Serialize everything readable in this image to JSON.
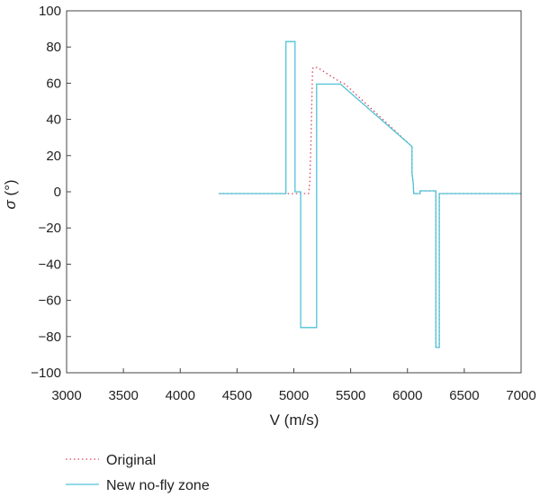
{
  "chart_data": {
    "type": "line",
    "xlabel": "V (m/s)",
    "ylabel_symbol": "σ",
    "ylabel_unit": " (°)",
    "xlim": [
      3000,
      7000
    ],
    "ylim": [
      -100,
      100
    ],
    "xticks": [
      3000,
      3500,
      4000,
      4500,
      5000,
      5500,
      6000,
      6500,
      7000
    ],
    "yticks": [
      -100,
      -80,
      -60,
      -40,
      -20,
      0,
      20,
      40,
      60,
      80,
      100
    ],
    "grid": false,
    "legend_position": "bottom-left",
    "series": [
      {
        "name": "Original",
        "color": "#d9435a",
        "style": "dotted",
        "x": [
          4340,
          4930,
          5100,
          5130,
          5140,
          5150,
          5160,
          5165,
          5180,
          5210,
          5250,
          5300,
          5350,
          5400,
          5450,
          6040,
          6040,
          6050,
          6055,
          6060,
          6110,
          6110,
          6120,
          6200,
          6240,
          6250,
          6250,
          6280,
          6280,
          6300,
          7000
        ],
        "y": [
          -1,
          -1,
          -1,
          -1,
          5,
          25,
          55,
          68,
          69,
          68.5,
          67,
          65,
          63,
          61,
          59.5,
          25,
          10,
          5,
          -1,
          -1,
          -1,
          0.5,
          0.5,
          0.5,
          0.5,
          0.5,
          -86,
          -86,
          -1,
          -1,
          -1
        ]
      },
      {
        "name": "New no-fly zone",
        "color": "#4fc3d6",
        "style": "solid",
        "x": [
          4340,
          4930,
          4930,
          5010,
          5010,
          5060,
          5060,
          5200,
          5200,
          5410,
          6040,
          6040,
          6050,
          6055,
          6060,
          6110,
          6110,
          6120,
          6200,
          6240,
          6250,
          6250,
          6280,
          6280,
          6300,
          7000
        ],
        "y": [
          -1,
          -1,
          83,
          83,
          0,
          0,
          -75,
          -75,
          59.5,
          59.5,
          25,
          10,
          5,
          -1,
          -1,
          -1,
          0.5,
          0.5,
          0.5,
          0.5,
          0.5,
          -86,
          -86,
          -1,
          -1,
          -1
        ]
      }
    ]
  }
}
